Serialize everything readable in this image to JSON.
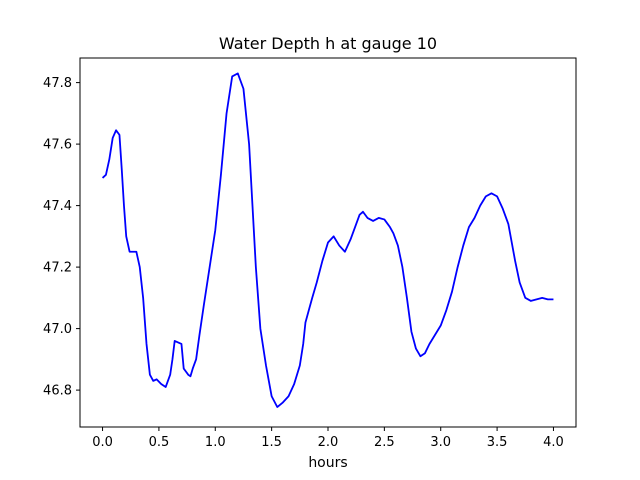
{
  "chart_data": {
    "type": "line",
    "title": "Water Depth h at gauge 10",
    "xlabel": "hours",
    "ylabel": "",
    "xlim": [
      -0.2,
      4.2
    ],
    "ylim": [
      46.68,
      47.88
    ],
    "x_ticks": [
      0.0,
      0.5,
      1.0,
      1.5,
      2.0,
      2.5,
      3.0,
      3.5,
      4.0
    ],
    "x_tick_labels": [
      "0.0",
      "0.5",
      "1.0",
      "1.5",
      "2.0",
      "2.5",
      "3.0",
      "3.5",
      "4.0"
    ],
    "y_ticks": [
      46.8,
      47.0,
      47.2,
      47.4,
      47.6,
      47.8
    ],
    "y_tick_labels": [
      "46.8",
      "47.0",
      "47.2",
      "47.4",
      "47.6",
      "47.8"
    ],
    "grid": false,
    "legend": "none",
    "series": [
      {
        "color": "#0000ff",
        "x": [
          0.0,
          0.03,
          0.06,
          0.09,
          0.12,
          0.15,
          0.17,
          0.19,
          0.21,
          0.24,
          0.27,
          0.3,
          0.33,
          0.36,
          0.39,
          0.42,
          0.45,
          0.48,
          0.52,
          0.56,
          0.6,
          0.62,
          0.64,
          0.67,
          0.7,
          0.72,
          0.74,
          0.76,
          0.78,
          0.8,
          0.83,
          0.86,
          0.9,
          0.95,
          1.0,
          1.05,
          1.1,
          1.15,
          1.2,
          1.25,
          1.3,
          1.33,
          1.36,
          1.4,
          1.45,
          1.5,
          1.55,
          1.6,
          1.65,
          1.7,
          1.75,
          1.78,
          1.8,
          1.83,
          1.86,
          1.9,
          1.95,
          2.0,
          2.05,
          2.1,
          2.15,
          2.2,
          2.25,
          2.28,
          2.31,
          2.35,
          2.4,
          2.45,
          2.5,
          2.53,
          2.55,
          2.58,
          2.62,
          2.66,
          2.7,
          2.74,
          2.78,
          2.82,
          2.86,
          2.9,
          2.95,
          3.0,
          3.05,
          3.1,
          3.15,
          3.2,
          3.25,
          3.3,
          3.35,
          3.4,
          3.45,
          3.5,
          3.55,
          3.6,
          3.63,
          3.66,
          3.7,
          3.75,
          3.8,
          3.85,
          3.9,
          3.95,
          4.0
        ],
        "y": [
          47.49,
          47.5,
          47.55,
          47.62,
          47.645,
          47.63,
          47.52,
          47.4,
          47.3,
          47.25,
          47.25,
          47.25,
          47.2,
          47.1,
          46.95,
          46.85,
          46.83,
          46.835,
          46.82,
          46.81,
          46.85,
          46.9,
          46.96,
          46.955,
          46.95,
          46.87,
          46.86,
          46.85,
          46.845,
          46.87,
          46.9,
          46.98,
          47.08,
          47.2,
          47.32,
          47.5,
          47.7,
          47.82,
          47.83,
          47.78,
          47.6,
          47.4,
          47.2,
          47.0,
          46.88,
          46.78,
          46.745,
          46.76,
          46.78,
          46.82,
          46.88,
          46.95,
          47.02,
          47.06,
          47.1,
          47.15,
          47.22,
          47.28,
          47.3,
          47.27,
          47.25,
          47.29,
          47.34,
          47.37,
          47.38,
          47.36,
          47.35,
          47.36,
          47.355,
          47.34,
          47.33,
          47.31,
          47.27,
          47.2,
          47.1,
          46.99,
          46.935,
          46.91,
          46.92,
          46.95,
          46.98,
          47.01,
          47.06,
          47.12,
          47.2,
          47.27,
          47.33,
          47.36,
          47.4,
          47.43,
          47.44,
          47.43,
          47.39,
          47.34,
          47.28,
          47.22,
          47.15,
          47.1,
          47.09,
          47.095,
          47.1,
          47.095,
          47.095
        ]
      }
    ]
  }
}
